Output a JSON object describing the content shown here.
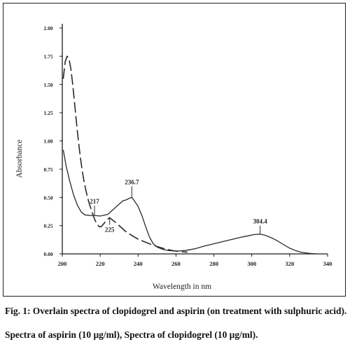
{
  "chart_data": {
    "type": "line",
    "xlabel": "Wavelength in nm",
    "ylabel": "Absorbance",
    "xlim": [
      200,
      340
    ],
    "ylim": [
      0.0,
      2.0
    ],
    "x_ticks": [
      200,
      220,
      240,
      260,
      280,
      300,
      320,
      340
    ],
    "x_tick_labels": [
      "200",
      "220",
      "240",
      "260",
      "280",
      "300",
      "320",
      "340"
    ],
    "y_ticks": [
      0.0,
      0.25,
      0.5,
      0.75,
      1.0,
      1.25,
      1.5,
      1.75,
      2.0
    ],
    "y_tick_labels": [
      "0.00",
      "0.25",
      "0.50",
      "0.75",
      "1.00",
      "1.25",
      "1.50",
      "1.75",
      "2.00"
    ],
    "grid": false,
    "series": [
      {
        "style": "solid",
        "x": [
          200.5,
          202,
          204,
          206,
          208,
          210,
          212,
          215,
          217,
          220,
          224,
          226,
          228,
          230,
          232,
          234,
          235,
          236.7,
          238,
          240,
          242,
          244,
          246,
          248,
          250,
          253,
          256,
          260,
          265,
          270,
          275,
          280,
          285,
          290,
          295,
          298,
          301,
          304.4,
          307,
          310,
          313,
          316,
          320,
          323,
          326,
          330,
          334
        ],
        "y": [
          0.92,
          0.78,
          0.64,
          0.52,
          0.43,
          0.37,
          0.345,
          0.34,
          0.34,
          0.335,
          0.35,
          0.38,
          0.41,
          0.44,
          0.47,
          0.48,
          0.49,
          0.5,
          0.47,
          0.42,
          0.34,
          0.24,
          0.15,
          0.09,
          0.06,
          0.04,
          0.03,
          0.025,
          0.03,
          0.045,
          0.07,
          0.09,
          0.11,
          0.13,
          0.15,
          0.16,
          0.17,
          0.175,
          0.165,
          0.145,
          0.12,
          0.09,
          0.05,
          0.03,
          0.015,
          0.005,
          0.0
        ]
      },
      {
        "style": "dashed",
        "x": [
          200.5,
          201.5,
          202.5,
          203.5,
          204.5,
          205.5,
          206.5,
          207.5,
          208.5,
          209.5,
          210.5,
          211.5,
          212.5,
          213.5,
          214.5,
          215.5,
          216.5,
          217.5,
          218.5,
          219.5,
          220.5,
          221.5,
          222.5,
          223.5,
          225,
          226.5,
          228,
          230,
          232,
          234,
          236,
          238,
          240,
          243,
          246,
          250,
          254,
          258,
          262,
          266
        ],
        "y": [
          1.55,
          1.7,
          1.75,
          1.73,
          1.64,
          1.5,
          1.33,
          1.16,
          1.0,
          0.86,
          0.74,
          0.64,
          0.56,
          0.49,
          0.43,
          0.38,
          0.33,
          0.29,
          0.26,
          0.24,
          0.24,
          0.26,
          0.28,
          0.3,
          0.32,
          0.3,
          0.28,
          0.25,
          0.22,
          0.19,
          0.17,
          0.15,
          0.13,
          0.11,
          0.09,
          0.065,
          0.045,
          0.03,
          0.02,
          0.015
        ]
      }
    ],
    "annotations": [
      {
        "text": "217",
        "x": 217,
        "y": 0.34
      },
      {
        "text": "225",
        "x": 225,
        "y": 0.32
      },
      {
        "text": "236.7",
        "x": 236.7,
        "y": 0.5
      },
      {
        "text": "304.4",
        "x": 304.4,
        "y": 0.175
      }
    ]
  },
  "caption": {
    "line1": "Fig. 1: Overlain spectra of clopidogrel and aspirin (on treatment with sulphuric acid).",
    "line2": "Spectra of aspirin (10 µg/ml), Spectra of clopidogrel (10 µg/ml)."
  },
  "colors": {
    "line": "#2a2a2a",
    "axis": "#1a1a1a"
  }
}
